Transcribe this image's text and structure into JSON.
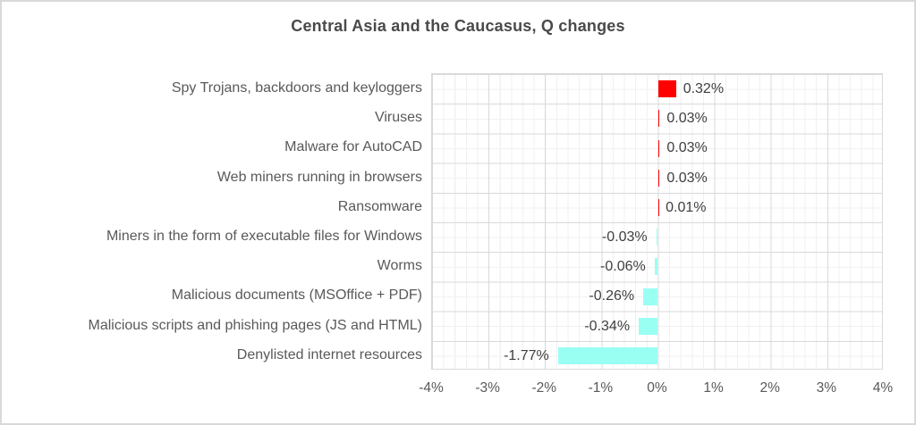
{
  "chart": {
    "title": "Central Asia and the Caucasus, Q changes"
  },
  "chart_data": {
    "type": "bar",
    "orientation": "horizontal",
    "title": "Central Asia and the Caucasus, Q changes",
    "categories": [
      "Spy Trojans, backdoors and keyloggers",
      "Viruses",
      "Malware for AutoCAD",
      "Web miners running in browsers",
      "Ransomware",
      "Miners in the form of executable files for Windows",
      "Worms",
      "Malicious documents (MSOffice + PDF)",
      "Malicious scripts and phishing pages (JS and HTML)",
      "Denylisted internet resources"
    ],
    "values": [
      0.32,
      0.03,
      0.03,
      0.03,
      0.01,
      -0.03,
      -0.06,
      -0.26,
      -0.34,
      -1.77
    ],
    "value_labels": [
      "0.32%",
      "0.03%",
      "0.03%",
      "0.03%",
      "0.01%",
      "-0.03%",
      "-0.06%",
      "-0.26%",
      "-0.34%",
      "-1.77%"
    ],
    "xlabel": "",
    "ylabel": "",
    "xlim": [
      -4,
      4
    ],
    "x_tick_labels": [
      "-4%",
      "-3%",
      "-2%",
      "-1%",
      "0%",
      "1%",
      "2%",
      "3%",
      "4%"
    ],
    "grid": "major and minor gridlines on",
    "legend_position": "none",
    "colors": {
      "positive_bar": "#ff0000",
      "negative_bar": "#99fff3",
      "major_gridline": "#d9d9d9",
      "minor_gridline": "#f1f1f1",
      "category_text": "#595959",
      "value_text": "#3f3f3f",
      "title_text": "#4a4a4a"
    }
  }
}
